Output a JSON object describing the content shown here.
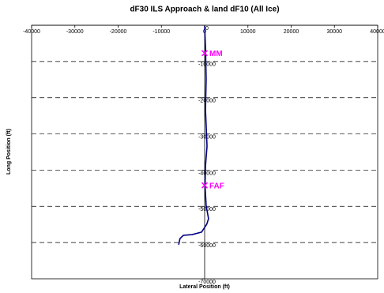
{
  "chart_data": {
    "type": "line",
    "title": "dF30 ILS Approach & land dF10 (All Ice)",
    "x_label": "Lateral Position (ft)",
    "y_label": "Long Position (ft)",
    "xlim": [
      -40000,
      40000
    ],
    "xticks": [
      -40000,
      -30000,
      -20000,
      -10000,
      0,
      10000,
      20000,
      30000,
      40000
    ],
    "ylim": [
      -70000,
      0
    ],
    "yticks": [
      0,
      -10000,
      -20000,
      -30000,
      -40000,
      -50000,
      -60000,
      -70000
    ],
    "grid": true,
    "series": [
      {
        "color": "#000080",
        "x": [
          0,
          200,
          350,
          200,
          400,
          550,
          200,
          100,
          350,
          900,
          500,
          -700,
          -2900,
          -4900,
          -5700,
          -6000
        ],
        "values": [
          -200,
          -6100,
          -14800,
          -23500,
          -29000,
          -33400,
          -38800,
          -44400,
          -49800,
          -53400,
          -54900,
          -57100,
          -57800,
          -58000,
          -58900,
          -60600
        ]
      }
    ],
    "markers": [
      {
        "label": "MM",
        "color": "#ff00ff",
        "x": 0,
        "y": -7700
      },
      {
        "label": "FAF",
        "color": "#ff00ff",
        "x": 0,
        "y": -44200
      }
    ]
  }
}
